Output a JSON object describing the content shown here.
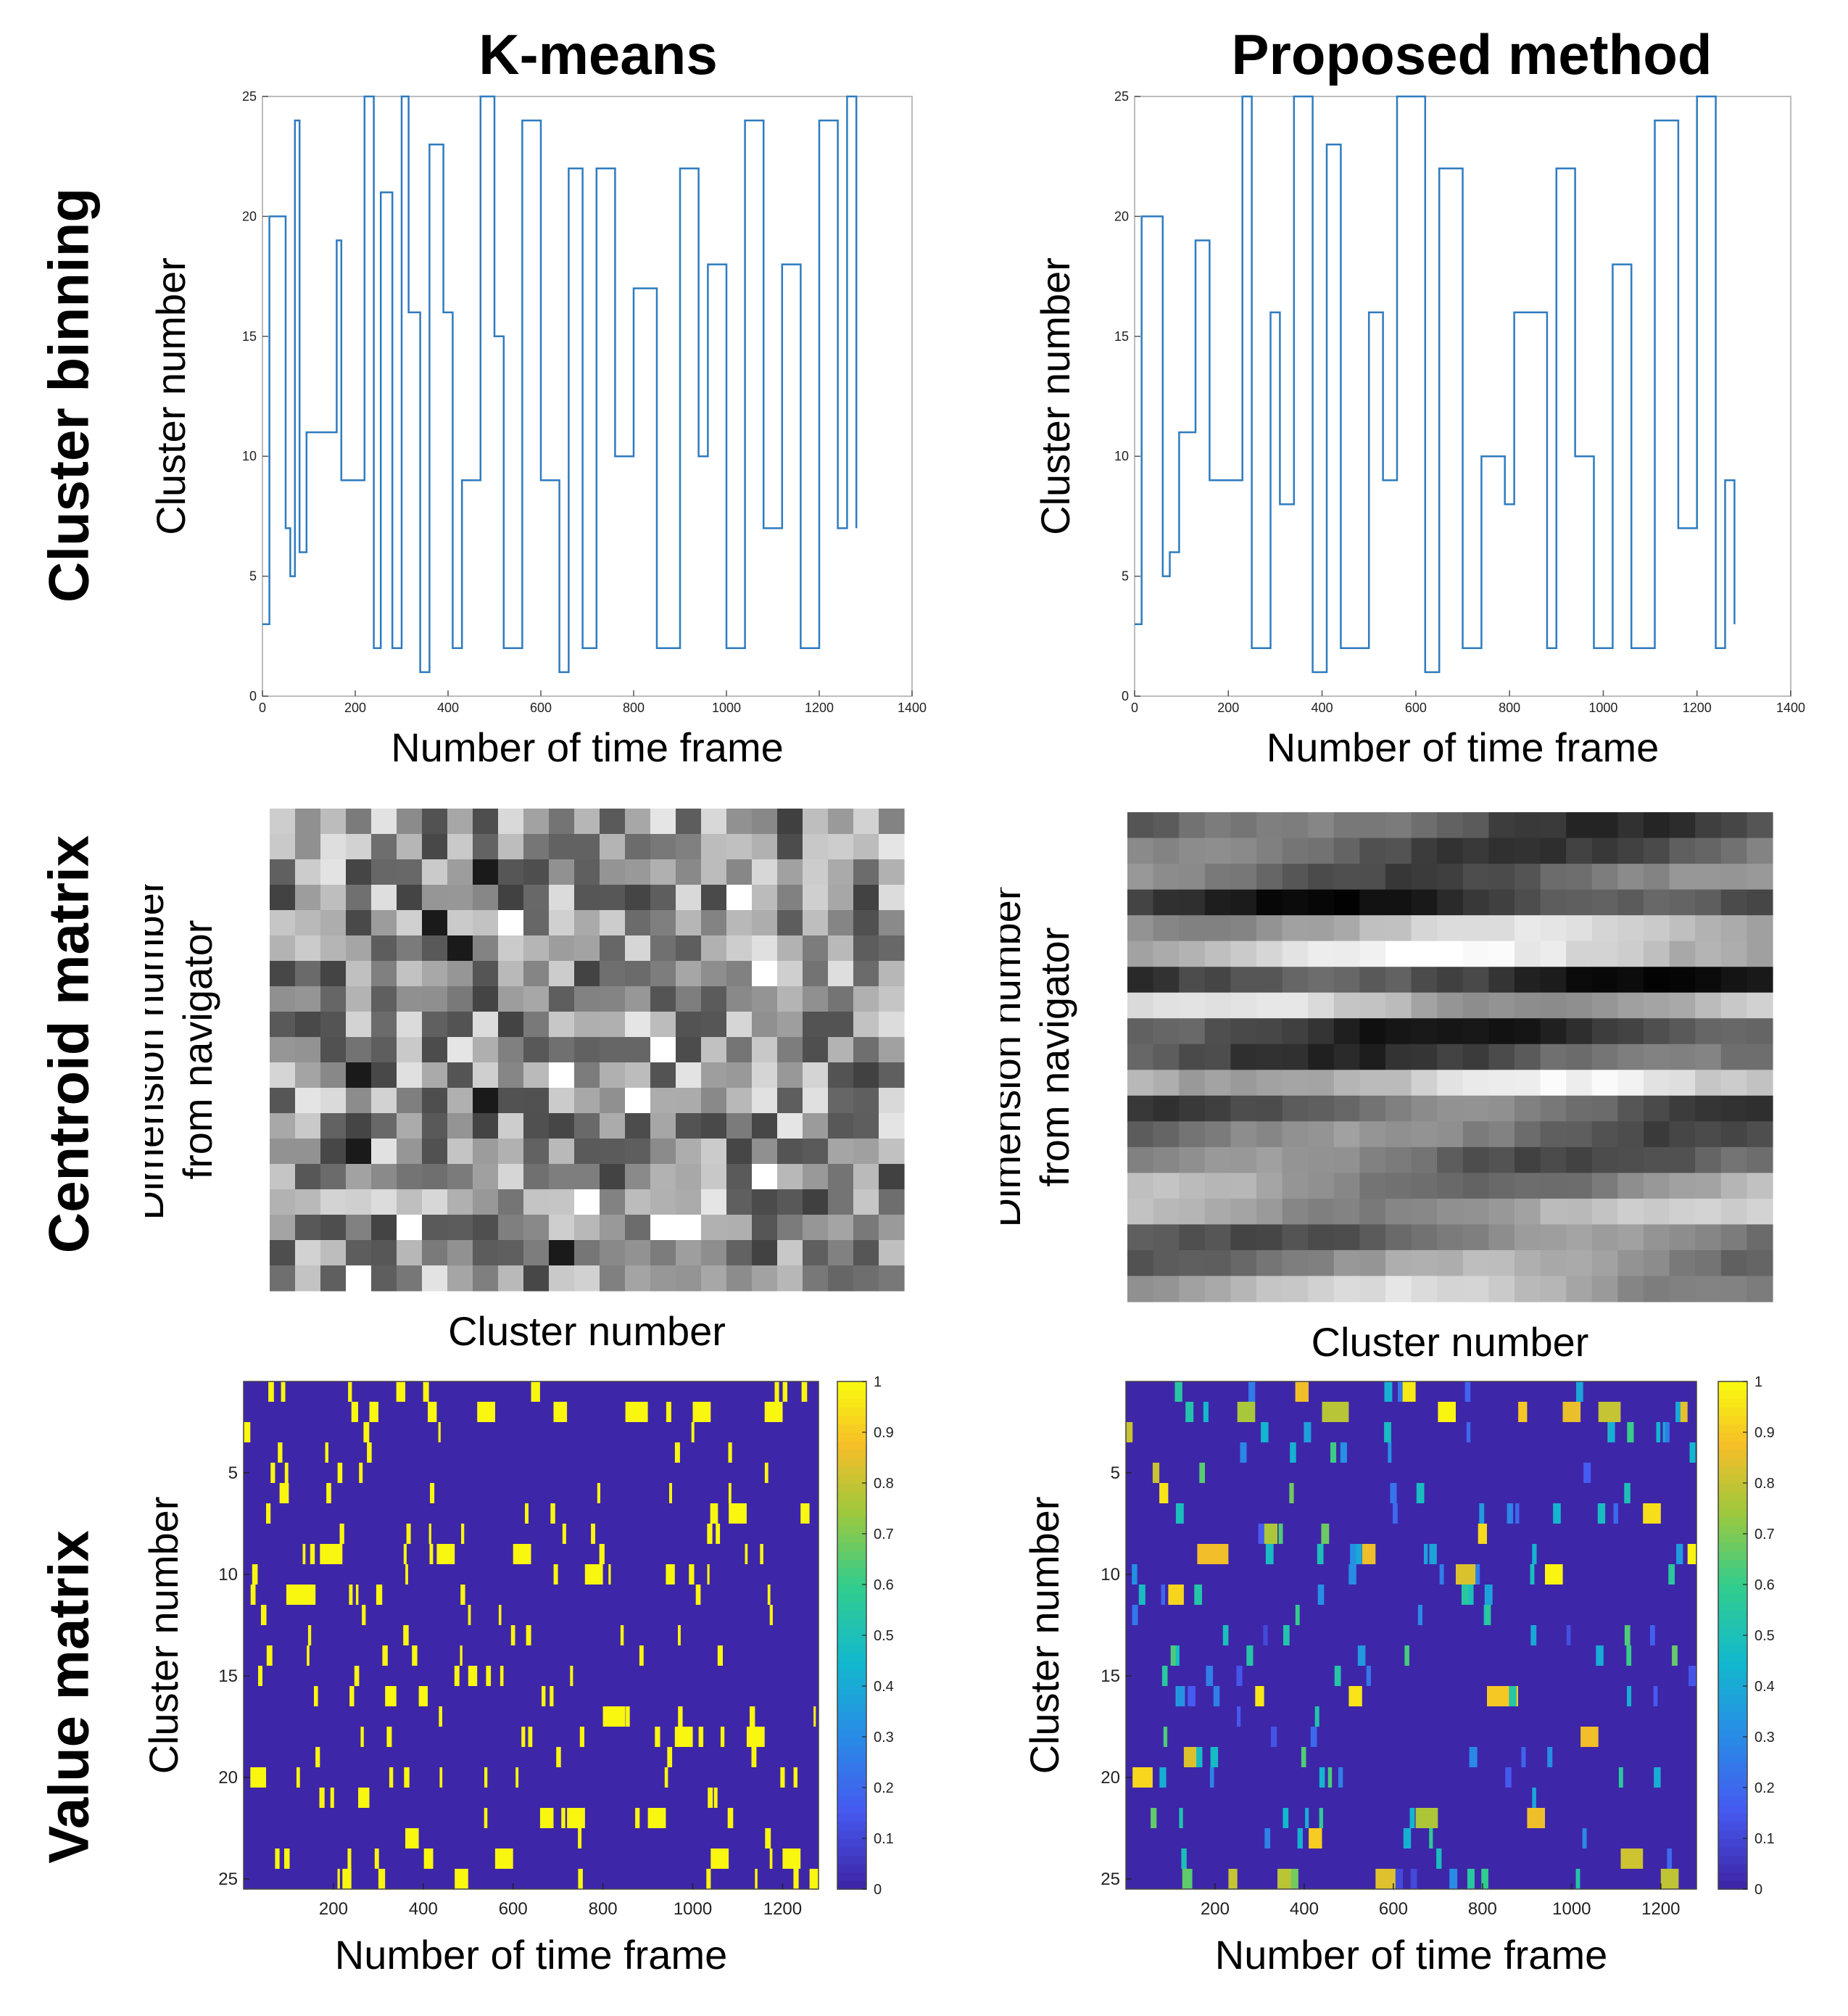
{
  "columns": [
    "K-means",
    "Proposed method"
  ],
  "rows": [
    "Cluster binning",
    "Centroid matrix",
    "Value matrix"
  ],
  "colors": {
    "line": "#2f7bbf",
    "heat_low": "#3e26a8",
    "heat_high": "#f9f60f"
  },
  "chart_data": [
    {
      "id": "kmeans-binning",
      "type": "line",
      "xlabel": "Number of time frame",
      "ylabel": "Cluster number",
      "xlim": [
        0,
        1400
      ],
      "ylim": [
        0,
        25
      ],
      "xticks": [
        0,
        200,
        400,
        600,
        800,
        1000,
        1200,
        1400
      ],
      "yticks": [
        0,
        5,
        10,
        15,
        20,
        25
      ],
      "x": [
        0,
        15,
        15,
        50,
        50,
        60,
        60,
        70,
        70,
        80,
        80,
        95,
        95,
        160,
        160,
        170,
        170,
        220,
        220,
        240,
        240,
        255,
        255,
        280,
        280,
        300,
        300,
        315,
        315,
        340,
        340,
        360,
        360,
        390,
        390,
        410,
        410,
        430,
        430,
        470,
        470,
        500,
        500,
        520,
        520,
        560,
        560,
        600,
        600,
        640,
        640,
        660,
        660,
        690,
        690,
        720,
        720,
        760,
        760,
        800,
        800,
        850,
        850,
        900,
        900,
        940,
        940,
        960,
        960,
        1000,
        1000,
        1040,
        1040,
        1080,
        1080,
        1120,
        1120,
        1160,
        1160,
        1200,
        1200,
        1240,
        1240,
        1260,
        1260,
        1280,
        1280
      ],
      "y": [
        3,
        3,
        20,
        20,
        7,
        7,
        5,
        5,
        24,
        24,
        6,
        6,
        11,
        11,
        19,
        19,
        9,
        9,
        25,
        25,
        2,
        2,
        21,
        21,
        2,
        2,
        25,
        25,
        16,
        16,
        1,
        1,
        23,
        23,
        16,
        16,
        2,
        2,
        9,
        9,
        25,
        25,
        15,
        15,
        2,
        2,
        24,
        24,
        9,
        9,
        1,
        1,
        22,
        22,
        2,
        2,
        22,
        22,
        10,
        10,
        17,
        17,
        2,
        2,
        22,
        22,
        10,
        10,
        18,
        18,
        2,
        2,
        24,
        24,
        7,
        7,
        18,
        18,
        2,
        2,
        24,
        24,
        7,
        7,
        25,
        25,
        7
      ]
    },
    {
      "id": "proposed-binning",
      "type": "line",
      "xlabel": "Number of time frame",
      "ylabel": "Cluster number",
      "xlim": [
        0,
        1400
      ],
      "ylim": [
        0,
        25
      ],
      "xticks": [
        0,
        200,
        400,
        600,
        800,
        1000,
        1200,
        1400
      ],
      "yticks": [
        0,
        5,
        10,
        15,
        20,
        25
      ],
      "x": [
        0,
        15,
        15,
        60,
        60,
        75,
        75,
        95,
        95,
        130,
        130,
        160,
        160,
        230,
        230,
        250,
        250,
        290,
        290,
        310,
        310,
        340,
        340,
        380,
        380,
        410,
        410,
        440,
        440,
        500,
        500,
        530,
        530,
        560,
        560,
        620,
        620,
        650,
        650,
        700,
        700,
        740,
        740,
        790,
        790,
        810,
        810,
        880,
        880,
        900,
        900,
        940,
        940,
        980,
        980,
        1020,
        1020,
        1060,
        1060,
        1110,
        1110,
        1160,
        1160,
        1200,
        1200,
        1240,
        1240,
        1260,
        1260,
        1280,
        1280
      ],
      "y": [
        3,
        3,
        20,
        20,
        5,
        5,
        6,
        6,
        11,
        11,
        19,
        19,
        9,
        9,
        25,
        25,
        2,
        2,
        16,
        16,
        8,
        8,
        25,
        25,
        1,
        1,
        23,
        23,
        2,
        2,
        16,
        16,
        9,
        9,
        25,
        25,
        1,
        1,
        22,
        22,
        2,
        2,
        10,
        10,
        8,
        8,
        16,
        16,
        2,
        2,
        22,
        22,
        10,
        10,
        2,
        2,
        18,
        18,
        2,
        2,
        24,
        24,
        7,
        7,
        25,
        25,
        2,
        2,
        9,
        9,
        3
      ]
    },
    {
      "id": "kmeans-centroid",
      "type": "heatmap",
      "xlabel": "Cluster number",
      "ylabel_lines": [
        "Dimension number",
        "from navigator"
      ],
      "rows": 19,
      "cols": 25,
      "pattern": "random",
      "range": [
        0.25,
        0.9
      ]
    },
    {
      "id": "proposed-centroid",
      "type": "heatmap",
      "xlabel": "Cluster number",
      "ylabel_lines": [
        "Dimension number",
        "from navigator"
      ],
      "rows": 19,
      "cols": 25,
      "pattern": "banded",
      "range": [
        0.0,
        1.0
      ]
    },
    {
      "id": "kmeans-value",
      "type": "heatmap",
      "xlabel": "Number of time frame",
      "ylabel": "Cluster number",
      "xticks": [
        200,
        400,
        600,
        800,
        1000,
        1200
      ],
      "yticks": [
        5,
        10,
        15,
        20,
        25
      ],
      "xlim": [
        0,
        1280
      ],
      "ylim": [
        1,
        25
      ],
      "colorbar": {
        "min": 0,
        "max": 1,
        "ticks": [
          "0",
          "0.1",
          "0.2",
          "0.3",
          "0.4",
          "0.5",
          "0.6",
          "0.7",
          "0.8",
          "0.9",
          "1"
        ]
      },
      "soft": false
    },
    {
      "id": "proposed-value",
      "type": "heatmap",
      "xlabel": "Number of time frame",
      "ylabel": "Cluster number",
      "xticks": [
        200,
        400,
        600,
        800,
        1000,
        1200
      ],
      "yticks": [
        5,
        10,
        15,
        20,
        25
      ],
      "xlim": [
        0,
        1280
      ],
      "ylim": [
        1,
        25
      ],
      "colorbar": {
        "min": 0,
        "max": 1,
        "ticks": [
          "0",
          "0.1",
          "0.2",
          "0.3",
          "0.4",
          "0.5",
          "0.6",
          "0.7",
          "0.8",
          "0.9",
          "1"
        ]
      },
      "soft": true
    }
  ]
}
